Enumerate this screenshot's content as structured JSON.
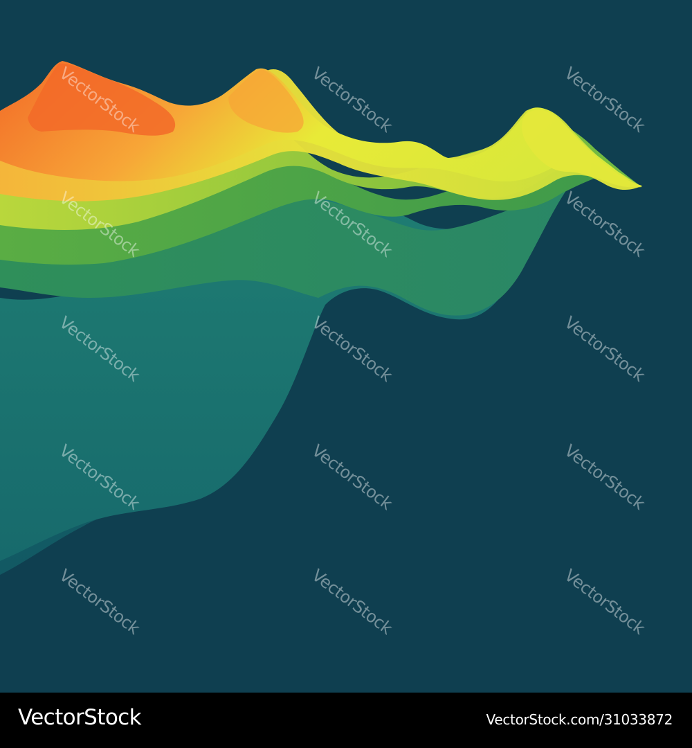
{
  "image": {
    "subject": "wave-terrain-illustration"
  },
  "colors": {
    "background": "#0f3f50",
    "footer": "#000000",
    "orange": "#f26a28",
    "amber": "#f7a637",
    "yellow": "#e8ea37",
    "lime": "#9ccb3b",
    "green": "#44a244",
    "teal": "#1f7d73",
    "deep_teal": "#155f66"
  },
  "watermark": {
    "text": "VectorStock"
  },
  "footer": {
    "brand": "VectorStock",
    "image_id": "VectorStock.com/31033872"
  }
}
